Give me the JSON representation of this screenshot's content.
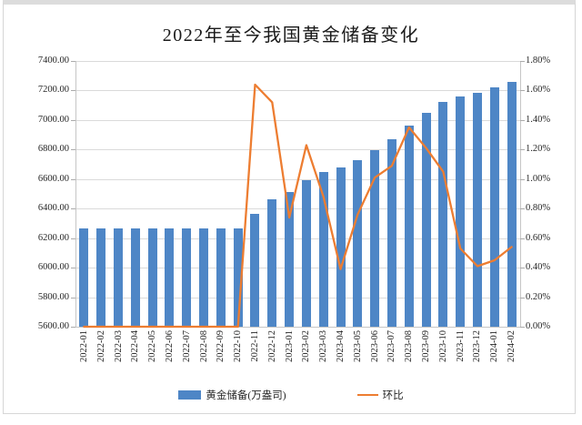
{
  "window": {
    "frame_border_color": "#d6d6d6",
    "top_strip_color": "#dcdcdc",
    "background": "#ffffff"
  },
  "chart_data": {
    "type": "bar",
    "subtype": "combo-bar-line",
    "title": "2022年至今我国黄金储备变化",
    "grid": "horizontal",
    "legend_position": "bottom",
    "categories": [
      "2022-01",
      "2022-02",
      "2022-03",
      "2022-04",
      "2022-05",
      "2022-06",
      "2022-07",
      "2022-08",
      "2022-09",
      "2022-10",
      "2022-11",
      "2022-12",
      "2023-01",
      "2023-02",
      "2023-03",
      "2023-04",
      "2023-05",
      "2023-06",
      "2023-07",
      "2023-08",
      "2023-09",
      "2023-10",
      "2023-11",
      "2023-12",
      "2024-01",
      "2024-02"
    ],
    "series": [
      {
        "name": "黄金储备(万盎司)",
        "chart": "bar",
        "axis": "left",
        "color": "#4E86C6",
        "values": [
          6264,
          6264,
          6264,
          6264,
          6264,
          6264,
          6264,
          6264,
          6264,
          6264,
          6367,
          6464,
          6512,
          6592,
          6650,
          6676,
          6727,
          6795,
          6869,
          6962,
          7046,
          7120,
          7158,
          7187,
          7219,
          7258
        ]
      },
      {
        "name": "环比",
        "chart": "line",
        "axis": "right",
        "color": "#ED7D31",
        "unit": "%",
        "values": [
          0.0,
          0.0,
          0.0,
          0.0,
          0.0,
          0.0,
          0.0,
          0.0,
          0.0,
          0.0,
          1.64,
          1.52,
          0.74,
          1.23,
          0.88,
          0.39,
          0.76,
          1.01,
          1.09,
          1.35,
          1.21,
          1.05,
          0.53,
          0.41,
          0.45,
          0.54
        ]
      }
    ],
    "left_axis": {
      "min": 5600,
      "max": 7400,
      "step": 200,
      "tick_labels_top_to_bottom": [
        "7400.00",
        "7200.00",
        "7000.00",
        "6800.00",
        "6600.00",
        "6400.00",
        "6200.00",
        "6000.00",
        "5800.00",
        "5600.00"
      ]
    },
    "right_axis": {
      "min": 0.0,
      "max": 1.8,
      "step": 0.2,
      "tick_labels_top_to_bottom": [
        "1.80%",
        "1.60%",
        "1.40%",
        "1.20%",
        "1.00%",
        "0.80%",
        "0.60%",
        "0.40%",
        "0.20%",
        "0.00%"
      ]
    }
  },
  "legend": {
    "items": [
      {
        "label": "黄金储备(万盎司)",
        "swatch": "bar",
        "color": "#4E86C6"
      },
      {
        "label": "环比",
        "swatch": "line",
        "color": "#ED7D31"
      }
    ]
  }
}
